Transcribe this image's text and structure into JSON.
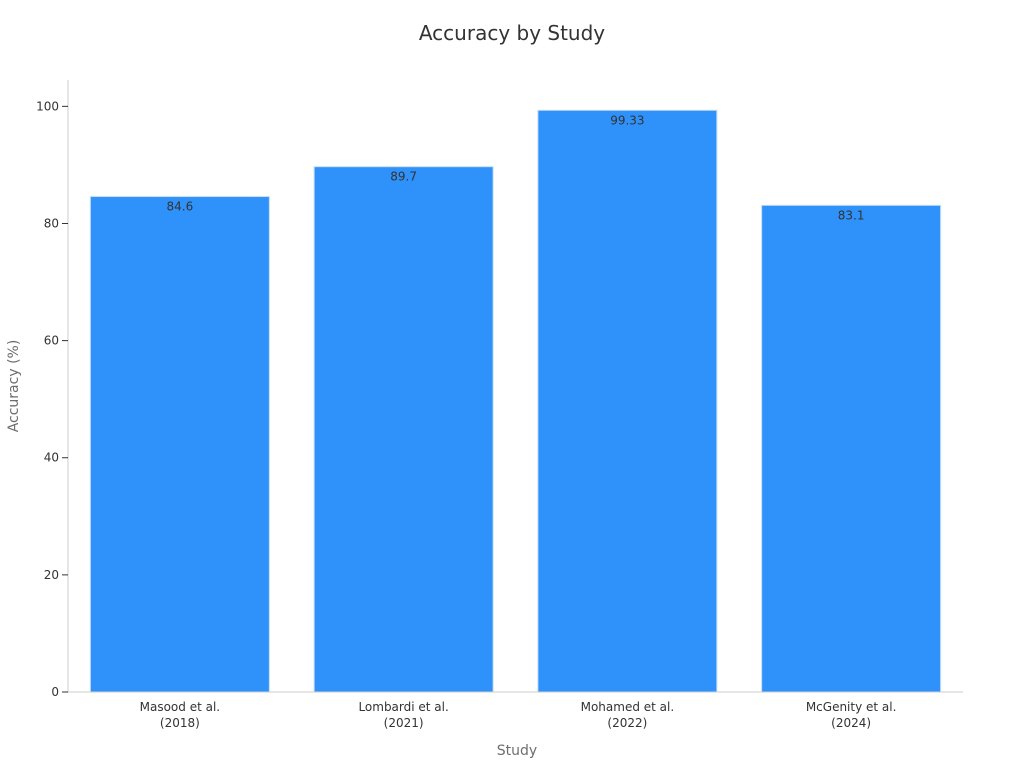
{
  "chart_data": {
    "type": "bar",
    "title": "Accuracy by Study",
    "xlabel": "Study",
    "ylabel": "Accuracy (%)",
    "categories": [
      [
        "Masood et al.",
        "(2018)"
      ],
      [
        "Lombardi et al.",
        "(2021)"
      ],
      [
        "Mohamed et al.",
        "(2022)"
      ],
      [
        "McGenity et al.",
        "(2024)"
      ]
    ],
    "values": [
      84.6,
      89.7,
      99.33,
      83.1
    ],
    "value_labels": [
      "84.6",
      "89.7",
      "99.33",
      "83.1"
    ],
    "ylim": [
      0,
      104.5
    ],
    "yticks": [
      0,
      20,
      40,
      60,
      80,
      100
    ],
    "bar_color": "#2f92fa",
    "grid": false,
    "legend": "none"
  }
}
